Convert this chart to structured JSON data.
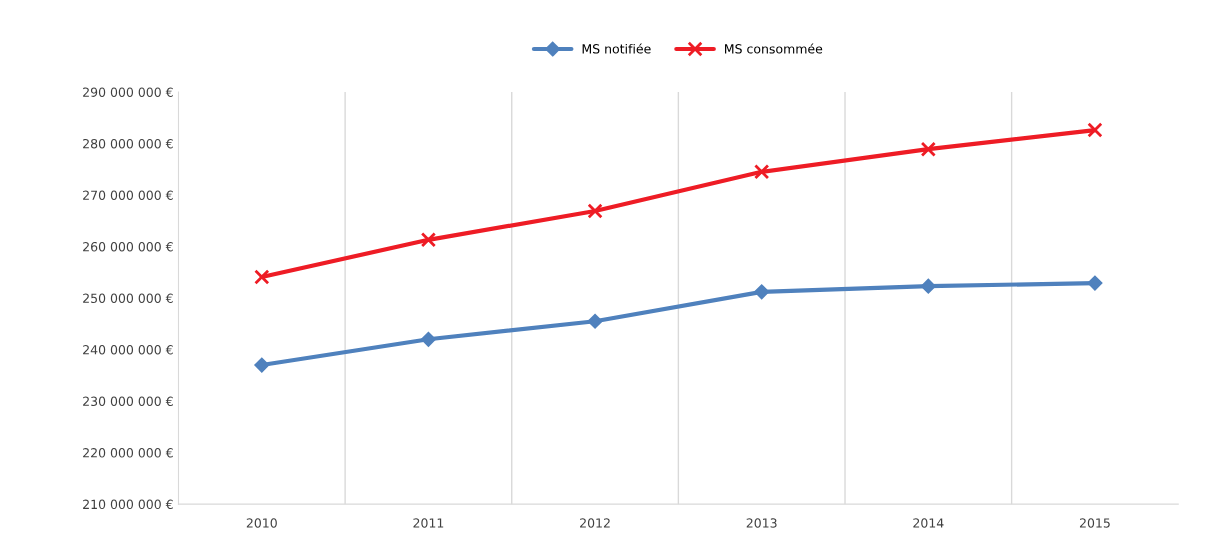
{
  "chart_data": {
    "type": "line",
    "categories": [
      "2010",
      "2011",
      "2012",
      "2013",
      "2014",
      "2015"
    ],
    "series": [
      {
        "name": "MS notifiée",
        "color": "#4f81bd",
        "marker": "diamond",
        "values": [
          237000000,
          242000000,
          245500000,
          251200000,
          252300000,
          252900000
        ]
      },
      {
        "name": "MS consommée",
        "color": "#ee1c25",
        "marker": "cross",
        "values": [
          254100000,
          261300000,
          266900000,
          274500000,
          278900000,
          282600000
        ]
      }
    ],
    "ylim": [
      210000000,
      290000000
    ],
    "yticks": [
      {
        "value": 210000000,
        "label": "210 000 000 €"
      },
      {
        "value": 220000000,
        "label": "220 000 000 €"
      },
      {
        "value": 230000000,
        "label": "230 000 000 €"
      },
      {
        "value": 240000000,
        "label": "240 000 000 €"
      },
      {
        "value": 250000000,
        "label": "250 000 000 €"
      },
      {
        "value": 260000000,
        "label": "260 000 000 €"
      },
      {
        "value": 270000000,
        "label": "270 000 000 €"
      },
      {
        "value": 280000000,
        "label": "280 000 000 €"
      },
      {
        "value": 290000000,
        "label": "290 000 000 €"
      }
    ],
    "grid": "x",
    "legend": "top",
    "line_style": "solid"
  }
}
